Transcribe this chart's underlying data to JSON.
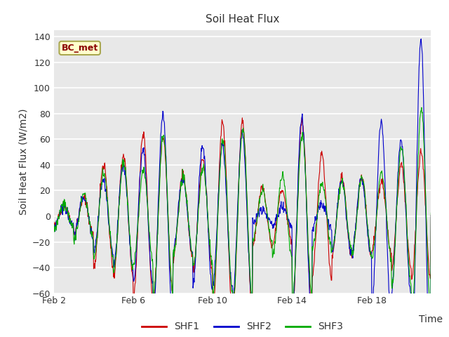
{
  "title": "Soil Heat Flux",
  "ylabel": "Soil Heat Flux (W/m2)",
  "xlabel": "Time",
  "annotation": "BC_met",
  "ylim": [
    -60,
    145
  ],
  "yticks": [
    -60,
    -40,
    -20,
    0,
    20,
    40,
    60,
    80,
    100,
    120,
    140
  ],
  "xtick_labels": [
    "Feb 2",
    "Feb 6",
    "Feb 10",
    "Feb 14",
    "Feb 18"
  ],
  "xtick_positions": [
    0,
    4,
    8,
    12,
    16
  ],
  "legend_labels": [
    "SHF1",
    "SHF2",
    "SHF3"
  ],
  "colors": {
    "SHF1": "#cc0000",
    "SHF2": "#0000cc",
    "SHF3": "#00aa00"
  },
  "bg_color": "#e8e8e8",
  "plot_bg": "#e8e8e8",
  "n_days": 19,
  "pts_per_day": 48,
  "title_fontsize": 11,
  "axis_fontsize": 10,
  "tick_fontsize": 9,
  "legend_fontsize": 10
}
